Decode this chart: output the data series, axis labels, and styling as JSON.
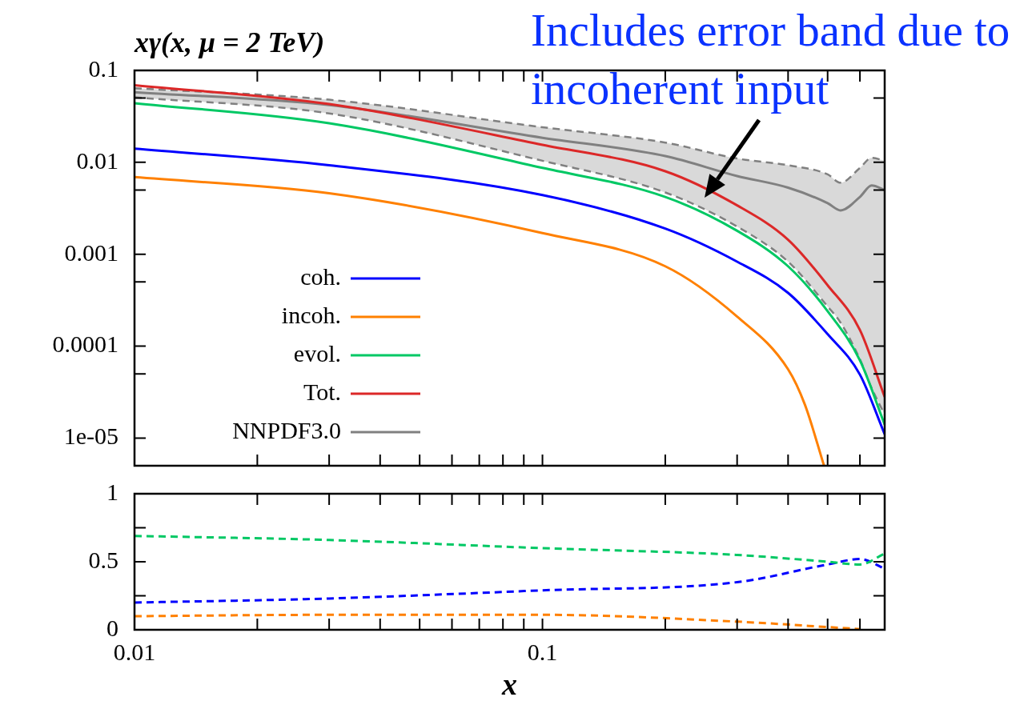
{
  "chart_data": [
    {
      "type": "line",
      "title": "xγ(x, μ = 2 TeV)",
      "log": "xy",
      "xlim": [
        0.01,
        0.69
      ],
      "xticks": [
        {
          "value": 0.01,
          "label": null
        },
        {
          "value": 0.02,
          "label": null
        },
        {
          "value": 0.03,
          "label": null
        },
        {
          "value": 0.04,
          "label": null
        },
        {
          "value": 0.05,
          "label": null
        },
        {
          "value": 0.06,
          "label": null
        },
        {
          "value": 0.07,
          "label": null
        },
        {
          "value": 0.08,
          "label": null
        },
        {
          "value": 0.09,
          "label": null
        },
        {
          "value": 0.1,
          "label": null
        },
        {
          "value": 0.2,
          "label": null
        },
        {
          "value": 0.3,
          "label": null
        },
        {
          "value": 0.4,
          "label": null
        },
        {
          "value": 0.5,
          "label": null
        },
        {
          "value": 0.6,
          "label": null
        }
      ],
      "ylim": [
        5e-06,
        0.1
      ],
      "yticks": [
        0.1,
        {
          "value": 0.05,
          "label": null
        },
        0.01,
        {
          "value": 0.005,
          "label": null
        },
        0.001,
        {
          "value": 0.0005,
          "label": null
        },
        0.0001,
        {
          "value": 5e-05,
          "label": null
        },
        {
          "value": 1e-05,
          "label": "1e-05"
        }
      ],
      "tick_labels": "y",
      "legend": "left",
      "marker": "none",
      "line_style": "solid",
      "annotations": [
        "Includes error band due to incoherent input"
      ],
      "x": [
        0.01,
        0.03,
        0.1,
        0.2,
        0.3,
        0.4,
        0.5,
        0.6,
        0.69
      ],
      "series": [
        {
          "name": "coh.",
          "color": "#0000ff",
          "values": [
            0.0141,
            0.0093,
            0.0044,
            0.0019,
            0.00083,
            0.00038,
            0.000135,
            4.9e-05,
            1.1e-05
          ]
        },
        {
          "name": "incoh.",
          "color": "#ff8000",
          "x": [
            0.01,
            0.03,
            0.1,
            0.2,
            0.3,
            0.4,
            0.44,
            0.49
          ],
          "values": [
            0.0069,
            0.0046,
            0.0017,
            0.00074,
            0.00021,
            5.6e-05,
            2.3e-05,
            5e-06
          ]
        },
        {
          "name": "evol.",
          "color": "#00c864",
          "values": [
            0.044,
            0.0266,
            0.0087,
            0.0042,
            0.0018,
            0.00074,
            0.00024,
            7e-05,
            1.4e-05
          ]
        },
        {
          "name": "Tot.",
          "color": "#dc2828",
          "values": [
            0.069,
            0.043,
            0.0155,
            0.008,
            0.0034,
            0.00144,
            0.00046,
            0.00015,
            2.8e-05
          ]
        },
        {
          "name": "NNPDF3.0",
          "color": "#808080",
          "x": [
            0.01,
            0.03,
            0.1,
            0.2,
            0.3,
            0.4,
            0.5,
            0.538,
            0.6,
            0.641,
            0.69
          ],
          "values": [
            0.058,
            0.042,
            0.0185,
            0.0117,
            0.0071,
            0.0053,
            0.0036,
            0.003,
            0.0042,
            0.0056,
            0.005
          ],
          "lower": [
            0.051,
            0.034,
            0.0104,
            0.0047,
            0.002,
            0.00083,
            0.00027,
            0.00018,
            7.2e-05,
            3.5e-05,
            1.8e-05
          ],
          "upper": [
            0.064,
            0.048,
            0.0241,
            0.0164,
            0.011,
            0.0093,
            0.0074,
            0.006,
            0.0087,
            0.0112,
            0.0104
          ]
        },
        {
          "color": "#808080",
          "line_style": "dashed",
          "x": [
            0.01,
            0.03,
            0.1,
            0.2,
            0.3,
            0.4,
            0.5,
            0.538,
            0.6,
            0.641,
            0.69
          ],
          "values": [
            0.064,
            0.048,
            0.0241,
            0.0164,
            0.011,
            0.0093,
            0.0074,
            0.006,
            0.0087,
            0.0112,
            0.0104
          ]
        },
        {
          "color": "#808080",
          "line_style": "dashed",
          "x": [
            0.01,
            0.03,
            0.1,
            0.2,
            0.3,
            0.4,
            0.5,
            0.538,
            0.6,
            0.641,
            0.69
          ],
          "values": [
            0.051,
            0.034,
            0.0104,
            0.0047,
            0.002,
            0.00083,
            0.00027,
            0.00018,
            7.2e-05,
            3.5e-05,
            1.8e-05
          ]
        }
      ]
    },
    {
      "type": "line",
      "xlabel": "x",
      "log": "x",
      "xlim": [
        0.01,
        0.69
      ],
      "xticks": [
        0.01,
        {
          "value": 0.02,
          "label": null
        },
        {
          "value": 0.03,
          "label": null
        },
        {
          "value": 0.04,
          "label": null
        },
        {
          "value": 0.05,
          "label": null
        },
        {
          "value": 0.06,
          "label": null
        },
        {
          "value": 0.07,
          "label": null
        },
        {
          "value": 0.08,
          "label": null
        },
        {
          "value": 0.09,
          "label": null
        },
        0.1,
        {
          "value": 0.2,
          "label": null
        },
        {
          "value": 0.3,
          "label": null
        },
        {
          "value": 0.4,
          "label": null
        },
        {
          "value": 0.5,
          "label": null
        },
        {
          "value": 0.6,
          "label": null
        }
      ],
      "ylim": [
        0,
        1
      ],
      "yticks": [
        0,
        {
          "value": 0.25,
          "label": null
        },
        0.5,
        {
          "value": 0.75,
          "label": null
        },
        1
      ],
      "marker": "none",
      "line_style": "dashed",
      "x": [
        0.01,
        0.03,
        0.1,
        0.3,
        0.5,
        0.6,
        0.69
      ],
      "series": [
        {
          "color": "#00c864",
          "values": [
            0.69,
            0.66,
            0.6,
            0.55,
            0.5,
            0.48,
            0.56
          ]
        },
        {
          "color": "#0000ff",
          "values": [
            0.2,
            0.23,
            0.29,
            0.35,
            0.48,
            0.52,
            0.45
          ]
        },
        {
          "color": "#ff8000",
          "values": [
            0.1,
            0.11,
            0.11,
            0.06,
            0.02,
            0.005,
            null
          ]
        }
      ]
    }
  ]
}
